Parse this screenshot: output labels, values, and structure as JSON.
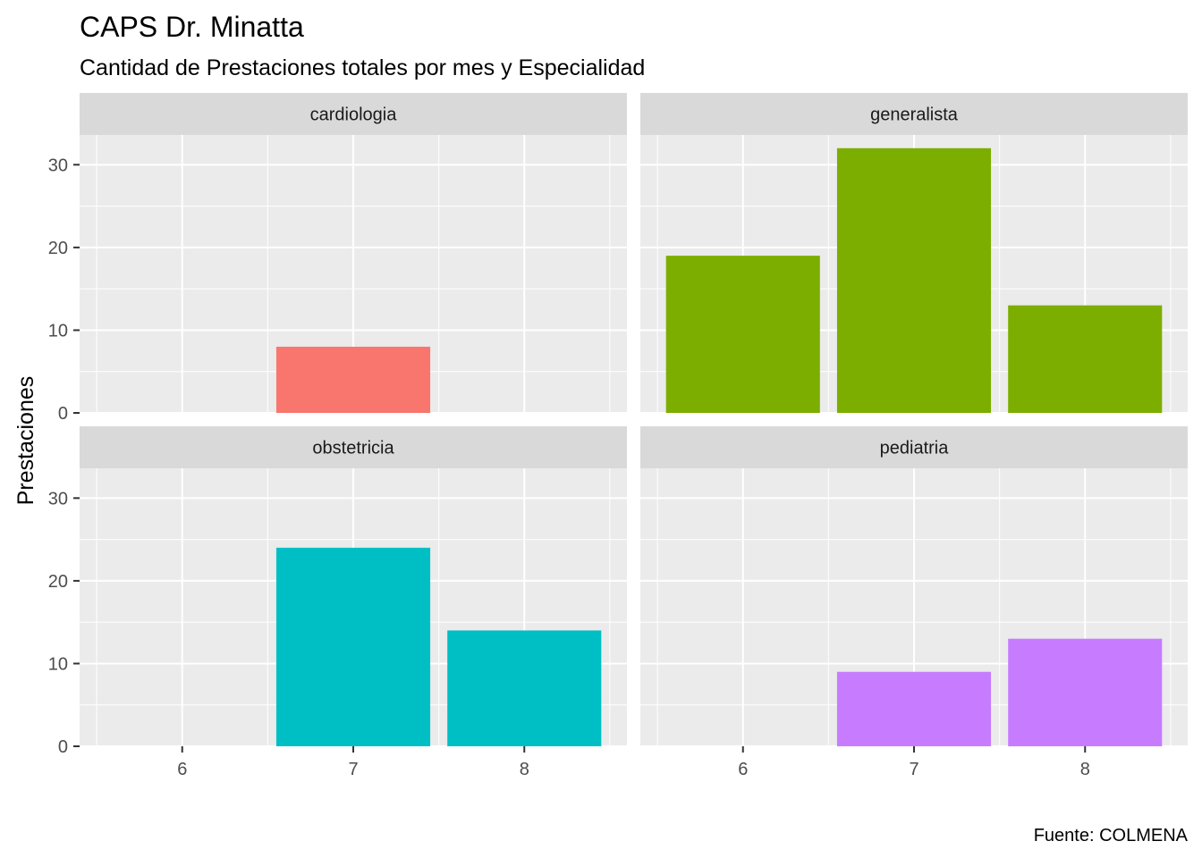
{
  "chart_data": {
    "type": "bar",
    "title": "CAPS Dr. Minatta",
    "subtitle": "Cantidad de Prestaciones totales por mes y Especialidad",
    "caption": "Fuente: COLMENA",
    "xlabel": "",
    "ylabel": "Prestaciones",
    "x_ticks": [
      "6",
      "7",
      "8"
    ],
    "y_ticks": [
      0,
      10,
      20,
      30
    ],
    "ylim": [
      0,
      33.6
    ],
    "grid": true,
    "legend": "none",
    "panel_background": "#EBEBEB",
    "strip_background": "#D9D9D9",
    "facets": [
      {
        "name": "cardiologia",
        "color": "#F8766D",
        "bars": [
          {
            "x": "7",
            "value": 8
          }
        ]
      },
      {
        "name": "generalista",
        "color": "#7CAE00",
        "bars": [
          {
            "x": "6",
            "value": 19
          },
          {
            "x": "7",
            "value": 32
          },
          {
            "x": "8",
            "value": 13
          }
        ]
      },
      {
        "name": "obstetricia",
        "color": "#00BFC4",
        "bars": [
          {
            "x": "7",
            "value": 24
          },
          {
            "x": "8",
            "value": 14
          }
        ]
      },
      {
        "name": "pediatria",
        "color": "#C77CFF",
        "bars": [
          {
            "x": "7",
            "value": 9
          },
          {
            "x": "8",
            "value": 13
          }
        ]
      }
    ]
  }
}
